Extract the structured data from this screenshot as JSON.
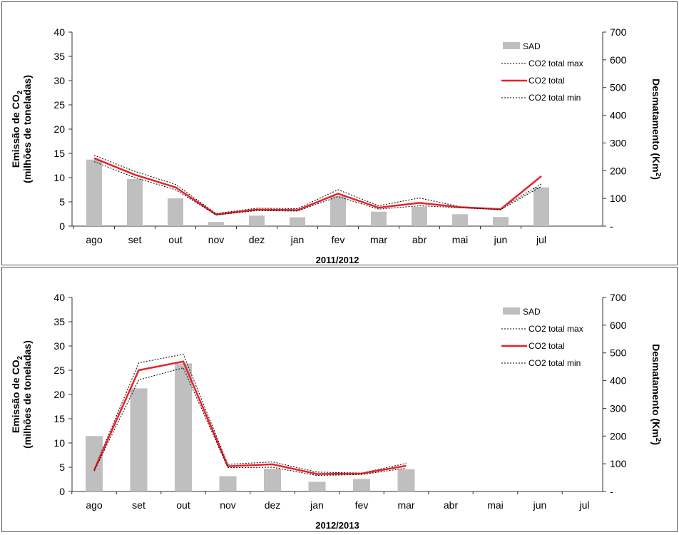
{
  "chart_data": [
    {
      "type": "bar",
      "period_label": "2011/2012",
      "categories": [
        "ago",
        "set",
        "out",
        "nov",
        "dez",
        "jan",
        "fev",
        "mar",
        "abr",
        "mai",
        "jun",
        "jul"
      ],
      "left_axis": {
        "label_line1": "Emissão de CO",
        "label_sub": "2",
        "label_line2": "(milhões de toneladas)",
        "ylim": [
          0,
          40
        ],
        "ticks": [
          "0",
          "5",
          "10",
          "15",
          "20",
          "25",
          "30",
          "35",
          "40"
        ]
      },
      "right_axis": {
        "label_main": "Desmatamento (Km",
        "label_sup": "2",
        "label_end": ")",
        "ylim": [
          0,
          700
        ],
        "ticks": [
          "-",
          "100",
          "200",
          "300",
          "400",
          "500",
          "600",
          "700"
        ]
      },
      "legend": {
        "position": "top-right",
        "items": [
          {
            "label": "SAD",
            "kind": "bar"
          },
          {
            "label": "CO2 total max",
            "kind": "dotted"
          },
          {
            "label": "CO2 total",
            "kind": "line"
          },
          {
            "label": "CO2 total min",
            "kind": "dotted"
          }
        ]
      },
      "series": [
        {
          "name": "SAD",
          "axis": "right",
          "kind": "bar",
          "color": "#BFBFBF",
          "values": [
            240,
            170,
            100,
            15,
            38,
            32,
            108,
            52,
            70,
            43,
            33,
            140
          ]
        },
        {
          "name": "CO2 total max",
          "axis": "left",
          "kind": "dotted",
          "color": "#000000",
          "values": [
            14.6,
            11.3,
            8.6,
            2.6,
            3.7,
            3.6,
            7.5,
            4.2,
            5.8,
            4.0,
            3.6,
            8.7
          ]
        },
        {
          "name": "CO2 total",
          "axis": "left",
          "kind": "line",
          "color": "#E8222A",
          "values": [
            14.0,
            10.6,
            8.0,
            2.4,
            3.4,
            3.3,
            6.7,
            3.8,
            4.8,
            3.9,
            3.5,
            10.3
          ]
        },
        {
          "name": "CO2 total min",
          "axis": "left",
          "kind": "dotted",
          "color": "#000000",
          "values": [
            13.3,
            10.0,
            7.5,
            2.3,
            3.2,
            3.1,
            6.1,
            3.5,
            4.2,
            3.8,
            3.4,
            8.2
          ]
        }
      ]
    },
    {
      "type": "bar",
      "period_label": "2012/2013",
      "categories": [
        "ago",
        "set",
        "out",
        "nov",
        "dez",
        "jan",
        "fev",
        "mar",
        "abr",
        "mai",
        "jun",
        "jul"
      ],
      "left_axis": {
        "label_line1": "Emissão de CO",
        "label_sub": "2",
        "label_line2": "(milhões de toneladas)",
        "ylim": [
          0,
          40
        ],
        "ticks": [
          "0",
          "5",
          "10",
          "15",
          "20",
          "25",
          "30",
          "35",
          "40"
        ]
      },
      "right_axis": {
        "label_main": "Desmatamento (Km",
        "label_sup": "2",
        "label_end": ")",
        "ylim": [
          0,
          700
        ],
        "ticks": [
          "-",
          "100",
          "200",
          "300",
          "400",
          "500",
          "600",
          "700"
        ]
      },
      "legend": {
        "position": "top-right",
        "items": [
          {
            "label": "SAD",
            "kind": "bar"
          },
          {
            "label": "CO2 total max",
            "kind": "dotted"
          },
          {
            "label": "CO2 total",
            "kind": "line"
          },
          {
            "label": "CO2 total min",
            "kind": "dotted"
          }
        ]
      },
      "series": [
        {
          "name": "SAD",
          "axis": "right",
          "kind": "bar",
          "color": "#BFBFBF",
          "values": [
            200,
            372,
            462,
            55,
            82,
            35,
            45,
            80,
            null,
            null,
            null,
            null
          ]
        },
        {
          "name": "CO2 total max",
          "axis": "left",
          "kind": "dotted",
          "color": "#000000",
          "values": [
            4.6,
            26.5,
            28.3,
            5.6,
            6.1,
            4.0,
            3.8,
            5.8,
            null,
            null,
            null,
            null
          ]
        },
        {
          "name": "CO2 total",
          "axis": "left",
          "kind": "line",
          "color": "#E8222A",
          "values": [
            4.4,
            25.0,
            26.8,
            5.2,
            5.6,
            3.6,
            3.7,
            5.3,
            null,
            null,
            null,
            null
          ]
        },
        {
          "name": "CO2 total min",
          "axis": "left",
          "kind": "dotted",
          "color": "#000000",
          "values": [
            4.2,
            23.0,
            25.5,
            4.9,
            5.0,
            3.3,
            3.5,
            4.8,
            null,
            null,
            null,
            null
          ]
        }
      ]
    }
  ]
}
